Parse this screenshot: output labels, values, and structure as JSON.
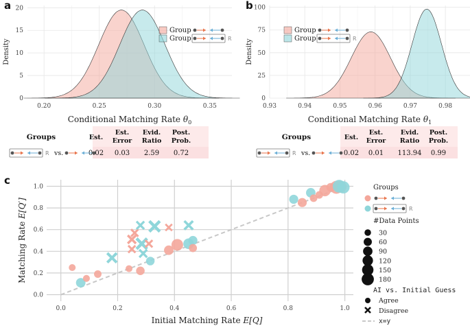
{
  "chart_data": [
    {
      "id": "a",
      "panel_label": "a",
      "type": "area",
      "title": "",
      "xlabel": "Conditional Matching Rate θ0",
      "xlabel_main": "Conditional Matching Rate ",
      "xlabel_sym": "θ",
      "xlabel_sub": "0",
      "ylabel": "Density",
      "xlim": [
        0.185,
        0.37
      ],
      "ylim": [
        0,
        20.5
      ],
      "xticks": [
        0.2,
        0.25,
        0.3,
        0.35
      ],
      "xtick_labels": [
        "0.20",
        "0.25",
        "0.30",
        "0.35"
      ],
      "yticks": [
        0,
        5,
        10,
        15,
        20
      ],
      "ytick_labels": [
        "0",
        "5",
        "10",
        "15",
        "20"
      ],
      "legend_position": "top-right",
      "series": [
        {
          "name": "Group",
          "color": "#f4a79b",
          "mean": 0.27,
          "sd": 0.0205,
          "peak": 19.5
        },
        {
          "name": "Group",
          "suffix": "R",
          "color": "#8fd6da",
          "mean": 0.289,
          "sd": 0.0205,
          "peak": 19.5
        }
      ]
    },
    {
      "id": "b",
      "panel_label": "b",
      "type": "area",
      "title": "",
      "xlabel": "Conditional Matching Rate θ1",
      "xlabel_main": "Conditional Matching Rate ",
      "xlabel_sym": "θ",
      "xlabel_sub": "1",
      "ylabel": "Density",
      "xlim": [
        0.93,
        0.987
      ],
      "ylim": [
        0,
        102
      ],
      "xticks": [
        0.93,
        0.94,
        0.95,
        0.96,
        0.97,
        0.98
      ],
      "xtick_labels": [
        "0.93",
        "0.94",
        "0.95",
        "0.96",
        "0.97",
        "0.98"
      ],
      "yticks": [
        0,
        25,
        50,
        75,
        100
      ],
      "ytick_labels": [
        "0",
        "25",
        "50",
        "75",
        "100"
      ],
      "legend_position": "top-left",
      "series": [
        {
          "name": "Group",
          "color": "#f4a79b",
          "mean": 0.9588,
          "sd": 0.0056,
          "peak": 73
        },
        {
          "name": "Group",
          "suffix": "R",
          "color": "#8fd6da",
          "mean": 0.9747,
          "sd": 0.0042,
          "peak": 98
        }
      ]
    },
    {
      "id": "c",
      "panel_label": "c",
      "type": "scatter",
      "title": "",
      "xlabel": "Initial Matching Rate E[Q]",
      "xlabel_main": "Initial Matching Rate ",
      "xlabel_sym": "E[Q]",
      "ylabel": "Matching Rate E[Q']",
      "ylabel_main": "Matching Rate ",
      "ylabel_sym": "E[Q′]",
      "xlim": [
        -0.05,
        1.03
      ],
      "ylim": [
        -0.06,
        1.06
      ],
      "xticks": [
        0.0,
        0.2,
        0.4,
        0.6,
        0.8,
        1.0
      ],
      "xtick_labels": [
        "0.0",
        "0.2",
        "0.4",
        "0.6",
        "0.8",
        "1.0"
      ],
      "yticks": [
        0.0,
        0.2,
        0.4,
        0.6,
        0.8,
        1.0
      ],
      "ytick_labels": [
        "0.0",
        "0.2",
        "0.4",
        "0.6",
        "0.8",
        "1.0"
      ],
      "reference_line": "x=y",
      "legend": {
        "groups_title": "Groups",
        "group_suffix": "R",
        "size_title": "#Data Points",
        "sizes": [
          30,
          60,
          90,
          120,
          150,
          180
        ],
        "size_labels": [
          "30",
          "60",
          "90",
          "120",
          "150",
          "180"
        ],
        "shape_title": "AI vs. Initial Guess",
        "agree_label": "Agree",
        "disagree_label": "Disagree",
        "line_label": "x=y"
      },
      "points": [
        {
          "x": 0.04,
          "y": 0.25,
          "n": 30,
          "group": "pink",
          "shape": "agree"
        },
        {
          "x": 0.07,
          "y": 0.11,
          "n": 80,
          "group": "cyan",
          "shape": "agree"
        },
        {
          "x": 0.09,
          "y": 0.15,
          "n": 30,
          "group": "pink",
          "shape": "agree"
        },
        {
          "x": 0.13,
          "y": 0.19,
          "n": 40,
          "group": "pink",
          "shape": "agree"
        },
        {
          "x": 0.18,
          "y": 0.34,
          "n": 90,
          "group": "cyan",
          "shape": "disagree"
        },
        {
          "x": 0.24,
          "y": 0.24,
          "n": 30,
          "group": "pink",
          "shape": "agree"
        },
        {
          "x": 0.25,
          "y": 0.51,
          "n": 60,
          "group": "pink",
          "shape": "disagree"
        },
        {
          "x": 0.26,
          "y": 0.57,
          "n": 40,
          "group": "pink",
          "shape": "disagree"
        },
        {
          "x": 0.25,
          "y": 0.42,
          "n": 40,
          "group": "pink",
          "shape": "disagree"
        },
        {
          "x": 0.28,
          "y": 0.64,
          "n": 50,
          "group": "cyan",
          "shape": "disagree"
        },
        {
          "x": 0.285,
          "y": 0.47,
          "n": 120,
          "group": "cyan",
          "shape": "disagree"
        },
        {
          "x": 0.28,
          "y": 0.22,
          "n": 60,
          "group": "pink",
          "shape": "agree"
        },
        {
          "x": 0.29,
          "y": 0.38,
          "n": 50,
          "group": "cyan",
          "shape": "disagree"
        },
        {
          "x": 0.31,
          "y": 0.47,
          "n": 40,
          "group": "pink",
          "shape": "disagree"
        },
        {
          "x": 0.315,
          "y": 0.31,
          "n": 60,
          "group": "cyan",
          "shape": "agree"
        },
        {
          "x": 0.33,
          "y": 0.63,
          "n": 120,
          "group": "cyan",
          "shape": "disagree"
        },
        {
          "x": 0.38,
          "y": 0.62,
          "n": 30,
          "group": "pink",
          "shape": "disagree"
        },
        {
          "x": 0.38,
          "y": 0.41,
          "n": 80,
          "group": "pink",
          "shape": "agree"
        },
        {
          "x": 0.41,
          "y": 0.46,
          "n": 140,
          "group": "pink",
          "shape": "agree"
        },
        {
          "x": 0.45,
          "y": 0.64,
          "n": 70,
          "group": "cyan",
          "shape": "disagree"
        },
        {
          "x": 0.45,
          "y": 0.47,
          "n": 110,
          "group": "cyan",
          "shape": "agree"
        },
        {
          "x": 0.465,
          "y": 0.5,
          "n": 70,
          "group": "cyan",
          "shape": "agree"
        },
        {
          "x": 0.465,
          "y": 0.43,
          "n": 50,
          "group": "pink",
          "shape": "agree"
        },
        {
          "x": 0.82,
          "y": 0.88,
          "n": 70,
          "group": "cyan",
          "shape": "agree"
        },
        {
          "x": 0.85,
          "y": 0.85,
          "n": 70,
          "group": "pink",
          "shape": "agree"
        },
        {
          "x": 0.88,
          "y": 0.94,
          "n": 80,
          "group": "cyan",
          "shape": "agree"
        },
        {
          "x": 0.89,
          "y": 0.89,
          "n": 40,
          "group": "pink",
          "shape": "agree"
        },
        {
          "x": 0.91,
          "y": 0.92,
          "n": 40,
          "group": "pink",
          "shape": "agree"
        },
        {
          "x": 0.93,
          "y": 0.96,
          "n": 130,
          "group": "pink",
          "shape": "agree"
        },
        {
          "x": 0.95,
          "y": 0.99,
          "n": 60,
          "group": "pink",
          "shape": "agree"
        },
        {
          "x": 0.97,
          "y": 0.99,
          "n": 180,
          "group": "pink",
          "shape": "agree"
        },
        {
          "x": 0.985,
          "y": 0.995,
          "n": 150,
          "group": "pink",
          "shape": "agree"
        },
        {
          "x": 0.98,
          "y": 1.0,
          "n": 180,
          "group": "cyan",
          "shape": "agree"
        },
        {
          "x": 0.995,
          "y": 0.99,
          "n": 160,
          "group": "cyan",
          "shape": "agree"
        }
      ]
    }
  ],
  "tables": [
    {
      "id": "a",
      "groups_header": "Groups",
      "suffix": "R",
      "vs": "vs.",
      "headers": [
        [
          "Est.",
          ""
        ],
        [
          "Est.",
          "Error"
        ],
        [
          "Evid.",
          "Ratio"
        ],
        [
          "Post.",
          "Prob."
        ]
      ],
      "values": [
        "0.02",
        "0.03",
        "2.59",
        "0.72"
      ]
    },
    {
      "id": "b",
      "groups_header": "Groups",
      "suffix": "R",
      "vs": "vs.",
      "headers": [
        [
          "Est.",
          ""
        ],
        [
          "Est.",
          "Error"
        ],
        [
          "Evid.",
          "Ratio"
        ],
        [
          "Post.",
          "Prob."
        ]
      ],
      "values": [
        "0.02",
        "0.01",
        "113.94",
        "0.99"
      ]
    }
  ],
  "colors": {
    "pink": "#f4a79b",
    "cyan": "#8fd6da",
    "table_bg": "#fbe0e1",
    "grid": "#e6e6e6",
    "grid_c": "#cfcfcf",
    "arrow_orange": "#e8734a",
    "arrow_blue": "#6aaed6",
    "node": "#555555"
  }
}
